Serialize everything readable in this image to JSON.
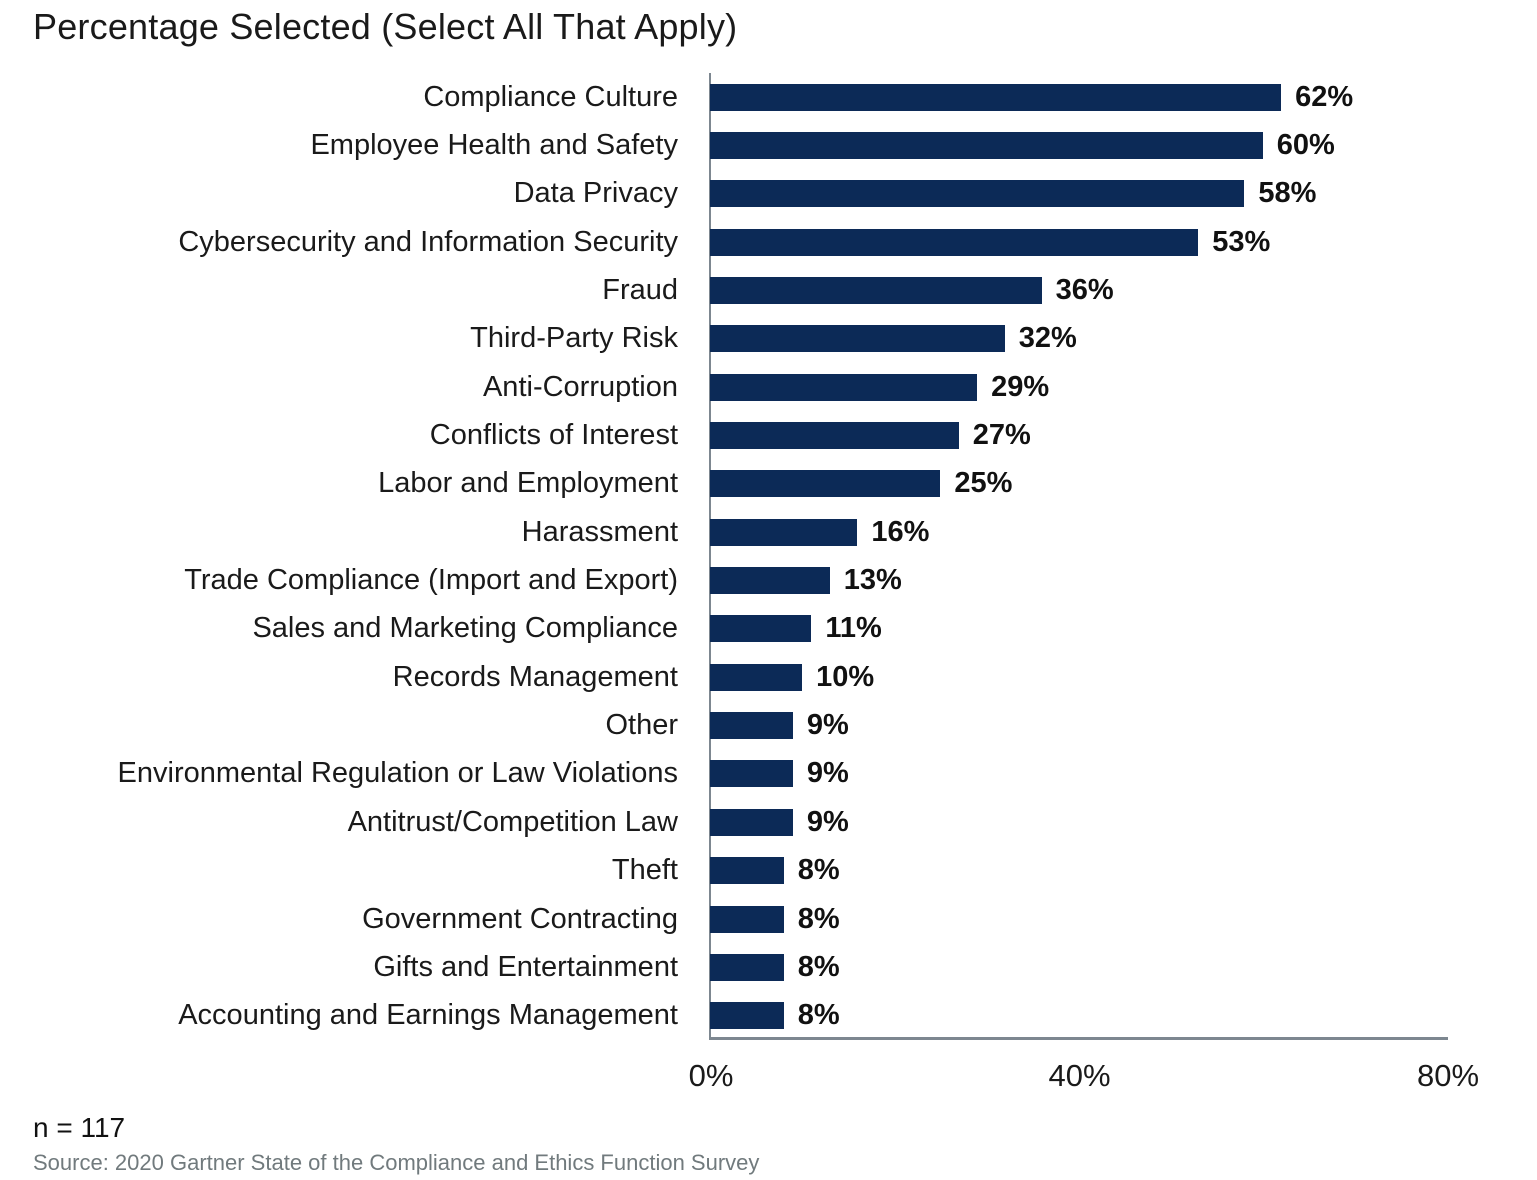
{
  "title": "Percentage Selected (Select All That Apply)",
  "footer": {
    "sample_size": "n = 117",
    "source": "Source: 2020 Gartner State of the Compliance and Ethics Function Survey"
  },
  "colors": {
    "bar": "#0c2a57",
    "axis": "#7d8790",
    "title_text": "#1a1a1a",
    "value_text": "#111111",
    "source_text": "#717a7d"
  },
  "chart_data": {
    "type": "bar",
    "orientation": "horizontal",
    "title": "Percentage Selected (Select All That Apply)",
    "categories": [
      "Compliance Culture",
      "Employee Health and Safety",
      "Data Privacy",
      "Cybersecurity and Information Security",
      "Fraud",
      "Third-Party Risk",
      "Anti-Corruption",
      "Conflicts of Interest",
      "Labor and Employment",
      "Harassment",
      "Trade Compliance (Import and Export)",
      "Sales and Marketing Compliance",
      "Records Management",
      "Other",
      "Environmental Regulation or Law Violations",
      "Antitrust/Competition Law",
      "Theft",
      "Government Contracting",
      "Gifts and Entertainment",
      "Accounting and Earnings Management"
    ],
    "values": [
      62,
      60,
      58,
      53,
      36,
      32,
      29,
      27,
      25,
      16,
      13,
      11,
      10,
      9,
      9,
      9,
      8,
      8,
      8,
      8
    ],
    "value_labels": [
      "62%",
      "60%",
      "58%",
      "53%",
      "36%",
      "32%",
      "29%",
      "27%",
      "25%",
      "16%",
      "13%",
      "11%",
      "10%",
      "9%",
      "9%",
      "9%",
      "8%",
      "8%",
      "8%",
      "8%"
    ],
    "xlabel": "",
    "ylabel": "",
    "xlim": [
      0,
      80
    ],
    "x_tick_values": [
      0,
      40,
      80
    ],
    "x_tick_labels": [
      "0%",
      "40%",
      "80%"
    ],
    "grid": false,
    "legend": "none"
  }
}
